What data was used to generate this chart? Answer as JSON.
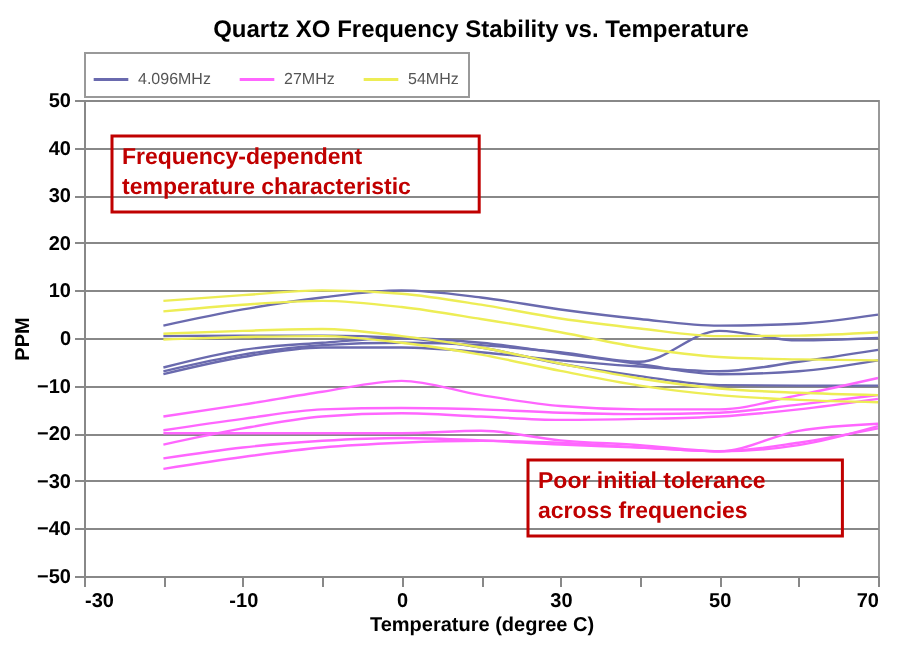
{
  "chart_data": {
    "type": "line",
    "title": "Quartz XO Frequency Stability vs. Temperature",
    "xlabel": "Temperature (degree C)",
    "ylabel": "PPM",
    "categories": [
      "-30",
      null,
      "-10",
      null,
      "0",
      null,
      "30",
      null,
      "50",
      null,
      "70"
    ],
    "ylim": [
      -50,
      50
    ],
    "yticks": [
      -50,
      -40,
      -30,
      -20,
      -10,
      0,
      10,
      20,
      30,
      40,
      50
    ],
    "grid": "y",
    "legend": "top",
    "marker": "none",
    "line_style": "solid",
    "annotations": [
      "Frequency-dependent temperature characteristic",
      "Poor initial tolerance across frequencies"
    ],
    "series": [
      {
        "name": "4.096MHz",
        "color": "#6a6aae",
        "values": [
          null,
          2.6,
          6,
          8.5,
          10,
          8.5,
          6,
          4,
          2.6,
          3,
          4.9
        ]
      },
      {
        "color": "#6a6aae",
        "values": [
          null,
          -7,
          -3.5,
          -1.5,
          -1,
          -1.5,
          -3,
          -5,
          1.5,
          -0.5,
          0
        ]
      },
      {
        "color": "#6a6aae",
        "values": [
          null,
          -7.6,
          -4,
          -2,
          -2,
          -3,
          -4.7,
          -6,
          -7,
          -5,
          -2.5
        ]
      },
      {
        "color": "#6a6aae",
        "values": [
          null,
          -6.2,
          -2.5,
          -1,
          0,
          -1,
          -3.2,
          -5.5,
          -7.6,
          -7,
          -4.7
        ]
      },
      {
        "color": "#6a6aae",
        "values": [
          null,
          0.4,
          0.5,
          0.5,
          0,
          -2,
          -5.4,
          -8,
          -9.9,
          -10,
          -10
        ]
      },
      {
        "name": "27MHz",
        "color": "#ff66ff",
        "values": [
          null,
          -16.5,
          -14,
          -11.3,
          -9,
          -12,
          -14.3,
          -15,
          -15,
          -12,
          -8.4
        ]
      },
      {
        "color": "#ff66ff",
        "values": [
          null,
          -19.4,
          -17,
          -15,
          -14.7,
          -15,
          -15.7,
          -16,
          -15.7,
          -14,
          -12
        ]
      },
      {
        "color": "#ff66ff",
        "values": [
          null,
          -22.4,
          -19,
          -16.5,
          -15.8,
          -16.5,
          -17.2,
          -17,
          -16.5,
          -15,
          -12.8
        ]
      },
      {
        "color": "#ff66ff",
        "values": [
          null,
          -20,
          -20,
          -20,
          -20,
          -19.5,
          -21.5,
          -22.5,
          -23.8,
          -19.5,
          -18
        ]
      },
      {
        "color": "#ff66ff",
        "values": [
          null,
          -25.3,
          -23,
          -21.6,
          -21,
          -21.5,
          -22.4,
          -23,
          -23.8,
          -22,
          -19
        ]
      },
      {
        "color": "#ff66ff",
        "values": [
          null,
          -27.5,
          -25,
          -23,
          -22,
          -21.6,
          -22,
          -23,
          -23.8,
          -22.5,
          -18.5
        ]
      },
      {
        "name": "54MHz",
        "color": "#eded55",
        "values": [
          null,
          7.8,
          9,
          10,
          9.3,
          7,
          4.1,
          2,
          0.4,
          0.5,
          1.2
        ]
      },
      {
        "color": "#eded55",
        "values": [
          null,
          5.6,
          7,
          7.8,
          6.5,
          4,
          1.2,
          -2,
          -4,
          -4.5,
          -4.7
        ]
      },
      {
        "color": "#eded55",
        "values": [
          null,
          0.9,
          1.5,
          1.9,
          0.4,
          -2,
          -5.4,
          -8.5,
          -10.6,
          -11.5,
          -12
        ]
      },
      {
        "color": "#eded55",
        "values": [
          null,
          -0.3,
          0.2,
          0.4,
          -1,
          -3.5,
          -6.9,
          -10,
          -12,
          -13,
          -13.5
        ]
      }
    ]
  }
}
